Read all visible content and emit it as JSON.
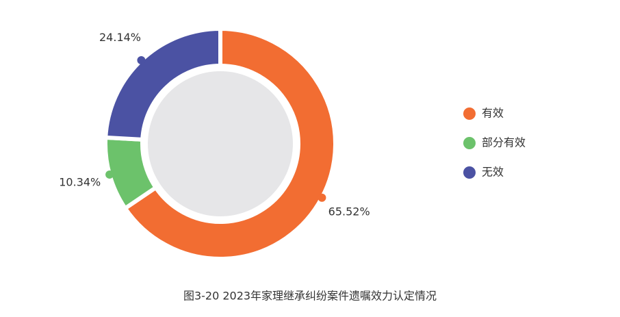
{
  "chart_data": {
    "type": "pie",
    "title": "图3-20  2023年家理继承纠纷案件遗嘱效力认定情况",
    "categories": [
      "有效",
      "部分有效",
      "无效"
    ],
    "values": [
      65.52,
      10.34,
      24.14
    ],
    "value_labels": [
      "65.52%",
      "10.34%",
      "24.14%"
    ],
    "colors": [
      "#f26d32",
      "#6cc26b",
      "#4b52a3"
    ],
    "legend": "right"
  }
}
